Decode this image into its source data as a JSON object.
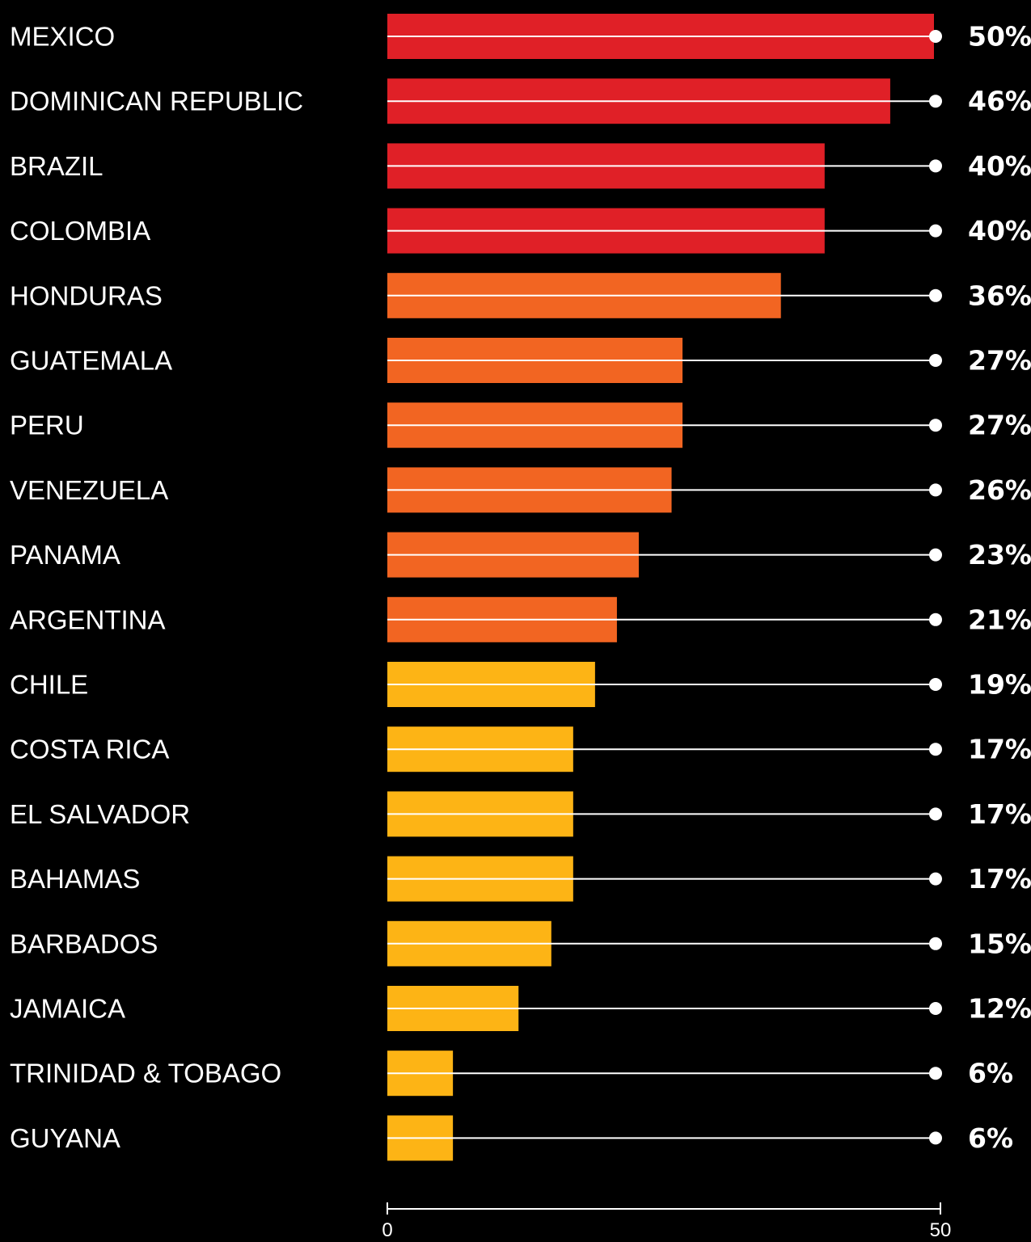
{
  "chart_data": {
    "type": "bar",
    "orientation": "horizontal",
    "categories": [
      "MEXICO",
      "DOMINICAN REPUBLIC",
      "BRAZIL",
      "COLOMBIA",
      "HONDURAS",
      "GUATEMALA",
      "PERU",
      "VENEZUELA",
      "PANAMA",
      "ARGENTINA",
      "CHILE",
      "COSTA RICA",
      "EL SALVADOR",
      "BAHAMAS",
      "BARBADOS",
      "JAMAICA",
      "TRINIDAD & TOBAGO",
      "GUYANA"
    ],
    "values": [
      50,
      46,
      40,
      40,
      36,
      27,
      27,
      26,
      23,
      21,
      19,
      17,
      17,
      17,
      15,
      12,
      6,
      6
    ],
    "value_labels": [
      "50%",
      "46%",
      "40%",
      "40%",
      "36%",
      "27%",
      "27%",
      "26%",
      "23%",
      "21%",
      "19%",
      "17%",
      "17%",
      "17%",
      "15%",
      "12%",
      "6%",
      "6%"
    ],
    "bar_colors": [
      "#e02027",
      "#e02027",
      "#e02027",
      "#e02027",
      "#f26522",
      "#f26522",
      "#f26522",
      "#f26522",
      "#f26522",
      "#f26522",
      "#fdb415",
      "#fdb415",
      "#fdb415",
      "#fdb415",
      "#fdb415",
      "#fdb415",
      "#fdb415",
      "#fdb415"
    ],
    "xlim": [
      0,
      50
    ],
    "x_ticks": [
      "0",
      "50"
    ],
    "background": "#000000",
    "line_color": "#ffffff",
    "grid": false,
    "legend": "none"
  }
}
